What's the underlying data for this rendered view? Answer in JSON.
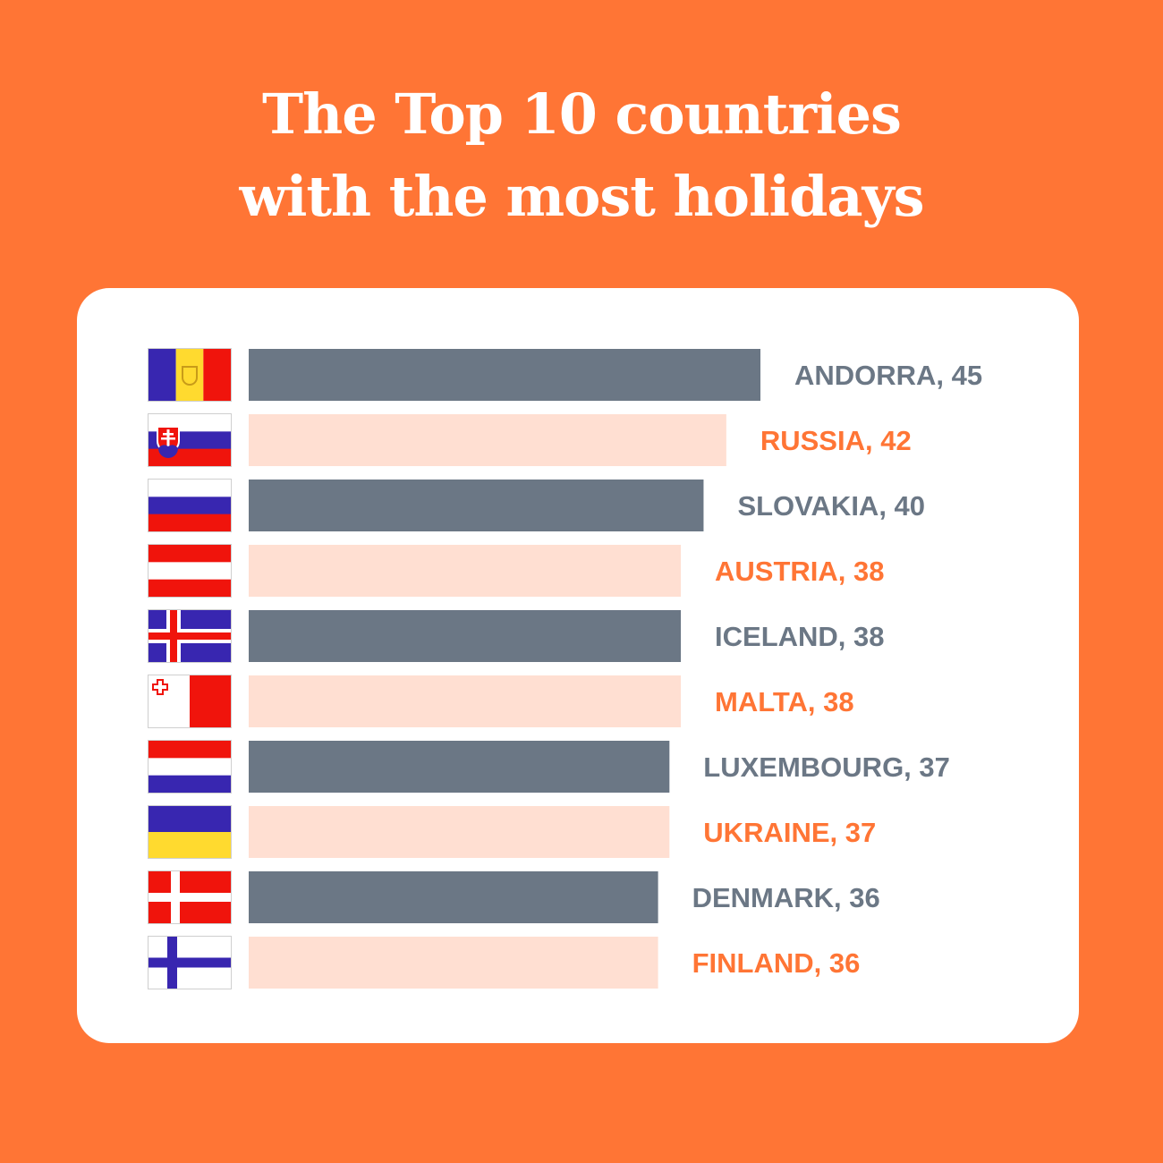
{
  "title": {
    "line1": "The Top 10 countries",
    "line2": "with the most holidays"
  },
  "colors": {
    "background": "#FF7535",
    "bar_dark": "#6B7785",
    "bar_light": "#FFDFD2",
    "label_dark": "#6B7785",
    "label_orange": "#FF7535"
  },
  "chart_data": {
    "type": "bar",
    "orientation": "horizontal",
    "title": "The Top 10 countries with the most holidays",
    "categories": [
      "ANDORRA",
      "RUSSIA",
      "SLOVAKIA",
      "AUSTRIA",
      "ICELAND",
      "MALTA",
      "LUXEMBOURG",
      "UKRAINE",
      "DENMARK",
      "FINLAND"
    ],
    "values": [
      45,
      42,
      40,
      38,
      38,
      38,
      37,
      37,
      36,
      36
    ],
    "labels": [
      "ANDORRA, 45",
      "RUSSIA, 42",
      "SLOVAKIA, 40",
      "AUSTRIA, 38",
      "ICELAND, 38",
      "MALTA, 38",
      "LUXEMBOURG, 37",
      "UKRAINE, 37",
      "DENMARK, 36",
      "FINLAND, 36"
    ],
    "bar_styles": [
      "dark",
      "light",
      "dark",
      "light",
      "dark",
      "light",
      "dark",
      "light",
      "dark",
      "light"
    ],
    "flags": [
      "andorra-flag",
      "slovakia-flag",
      "russia-flag",
      "austria-flag",
      "iceland-flag",
      "malta-flag",
      "netherlands-flag",
      "ukraine-flag",
      "denmark-flag",
      "finland-flag"
    ],
    "xlim": [
      0,
      45
    ],
    "grid": false,
    "legend": "none"
  }
}
